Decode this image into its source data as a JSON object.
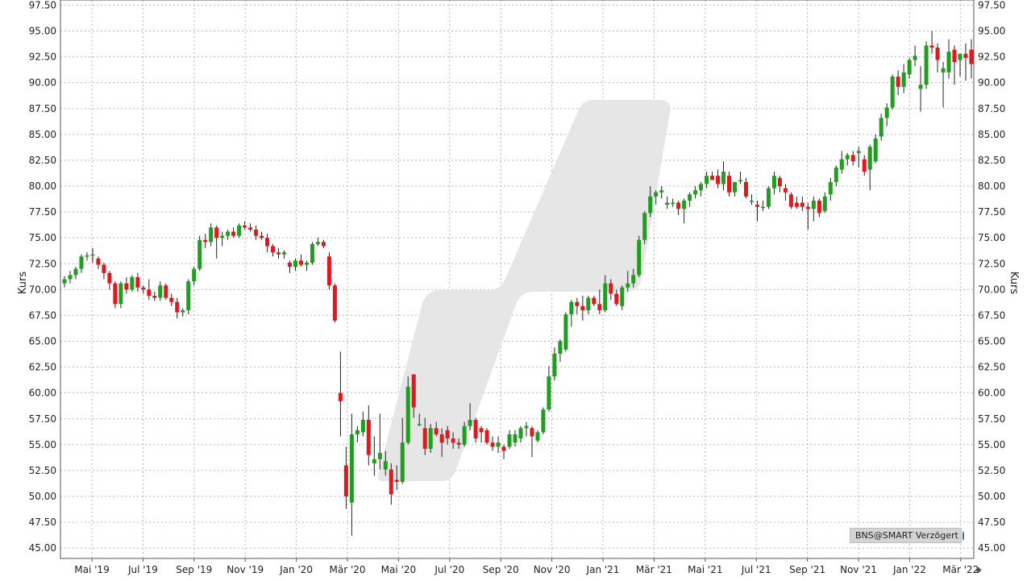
{
  "chart_data": {
    "type": "candlestick",
    "ylabel": "Kurs",
    "ylim": [
      44.0,
      98.0
    ],
    "y_ticks": [
      "45.00",
      "47.50",
      "50.00",
      "52.50",
      "55.00",
      "57.50",
      "60.00",
      "62.50",
      "65.00",
      "67.50",
      "70.00",
      "72.50",
      "75.00",
      "77.50",
      "80.00",
      "82.50",
      "85.00",
      "87.50",
      "90.00",
      "92.50",
      "95.00",
      "97.50"
    ],
    "x_ticks": [
      "Mai '19",
      "Jul '19",
      "Sep '19",
      "Nov '19",
      "Jan '20",
      "Mär '20",
      "Mai '20",
      "Jul '20",
      "Sep '20",
      "Nov '20",
      "Jan '21",
      "Mär '21",
      "Mai '21",
      "Jul '21",
      "Sep '21",
      "Nov '21",
      "Jan '22",
      "Mär '22"
    ],
    "grid": true,
    "colors": {
      "up": "#1f9e1f",
      "down": "#e0191e",
      "grid": "#b5b5b5",
      "watermark": "#e6e6e6"
    },
    "candles": [
      [
        70.6,
        71.3,
        70.2,
        71.0
      ],
      [
        71.0,
        71.8,
        70.6,
        71.4
      ],
      [
        71.4,
        72.2,
        71.0,
        72.0
      ],
      [
        72.0,
        73.4,
        71.6,
        73.2
      ],
      [
        73.2,
        73.6,
        72.8,
        73.3
      ],
      [
        73.3,
        74.0,
        72.6,
        73.4
      ],
      [
        73.0,
        73.2,
        72.0,
        72.4
      ],
      [
        72.4,
        72.6,
        71.0,
        71.6
      ],
      [
        71.6,
        71.8,
        70.0,
        70.6
      ],
      [
        70.6,
        70.8,
        68.2,
        68.6
      ],
      [
        68.6,
        70.8,
        68.2,
        70.6
      ],
      [
        70.6,
        71.2,
        69.6,
        70.0
      ],
      [
        70.0,
        71.4,
        69.8,
        71.2
      ],
      [
        71.2,
        71.6,
        69.8,
        70.2
      ],
      [
        70.2,
        70.4,
        69.6,
        70.0
      ],
      [
        70.0,
        71.0,
        69.0,
        69.4
      ],
      [
        69.4,
        69.8,
        68.9,
        69.2
      ],
      [
        69.2,
        70.8,
        68.9,
        70.4
      ],
      [
        70.4,
        70.6,
        69.0,
        69.2
      ],
      [
        69.2,
        69.6,
        68.4,
        68.8
      ],
      [
        68.8,
        69.2,
        67.2,
        67.8
      ],
      [
        67.8,
        68.2,
        67.4,
        68.0
      ],
      [
        68.0,
        71.0,
        67.6,
        70.8
      ],
      [
        70.8,
        72.2,
        70.4,
        72.0
      ],
      [
        72.0,
        75.2,
        71.8,
        74.8
      ],
      [
        74.8,
        75.4,
        74.0,
        74.6
      ],
      [
        74.6,
        76.4,
        74.2,
        76.0
      ],
      [
        76.0,
        76.2,
        73.0,
        75.0
      ],
      [
        75.0,
        75.6,
        74.2,
        75.2
      ],
      [
        75.2,
        75.8,
        74.8,
        75.6
      ],
      [
        75.6,
        76.0,
        75.0,
        75.2
      ],
      [
        75.2,
        76.4,
        75.0,
        76.2
      ],
      [
        76.2,
        76.6,
        75.8,
        76.0
      ],
      [
        76.0,
        76.4,
        75.6,
        75.8
      ],
      [
        75.8,
        76.2,
        74.8,
        75.2
      ],
      [
        75.2,
        75.6,
        74.8,
        75.0
      ],
      [
        75.0,
        75.4,
        73.6,
        74.2
      ],
      [
        74.2,
        74.4,
        73.2,
        73.6
      ],
      [
        73.6,
        74.0,
        73.0,
        73.4
      ],
      [
        73.4,
        73.8,
        73.0,
        73.6
      ],
      [
        72.6,
        72.8,
        71.6,
        72.2
      ],
      [
        72.2,
        73.0,
        71.8,
        72.8
      ],
      [
        72.8,
        73.4,
        72.2,
        72.4
      ],
      [
        72.4,
        72.8,
        71.8,
        72.6
      ],
      [
        72.6,
        74.6,
        72.4,
        74.4
      ],
      [
        74.4,
        75.0,
        74.2,
        74.6
      ],
      [
        74.6,
        74.8,
        74.0,
        74.2
      ],
      [
        73.2,
        73.6,
        70.0,
        70.4
      ],
      [
        70.4,
        70.6,
        66.8,
        67.0
      ],
      [
        60.0,
        64.0,
        55.8,
        59.2
      ],
      [
        53.0,
        54.8,
        48.8,
        50.0
      ],
      [
        49.4,
        58.0,
        46.2,
        56.0
      ],
      [
        56.0,
        56.8,
        55.2,
        56.4
      ],
      [
        56.2,
        58.2,
        55.8,
        57.4
      ],
      [
        57.4,
        58.8,
        53.0,
        54.0
      ],
      [
        53.2,
        55.8,
        52.0,
        53.6
      ],
      [
        53.6,
        58.0,
        52.6,
        54.2
      ],
      [
        52.6,
        54.4,
        52.0,
        53.4
      ],
      [
        52.6,
        53.2,
        49.2,
        50.2
      ],
      [
        51.6,
        53.0,
        50.6,
        51.4
      ],
      [
        51.4,
        57.6,
        51.2,
        55.2
      ],
      [
        55.2,
        61.6,
        55.0,
        60.6
      ],
      [
        61.8,
        61.8,
        57.6,
        58.6
      ],
      [
        57.0,
        58.0,
        56.8,
        57.0
      ],
      [
        56.6,
        57.6,
        54.0,
        54.6
      ],
      [
        54.6,
        57.0,
        54.2,
        56.6
      ],
      [
        56.6,
        57.2,
        55.8,
        56.0
      ],
      [
        56.0,
        56.6,
        53.8,
        55.2
      ],
      [
        56.4,
        56.8,
        55.0,
        55.6
      ],
      [
        55.6,
        56.2,
        54.6,
        55.2
      ],
      [
        55.2,
        55.6,
        54.6,
        55.0
      ],
      [
        55.0,
        57.2,
        54.8,
        56.8
      ],
      [
        56.8,
        59.0,
        56.4,
        57.4
      ],
      [
        57.4,
        57.6,
        55.2,
        55.6
      ],
      [
        56.6,
        56.8,
        55.2,
        56.2
      ],
      [
        56.4,
        56.6,
        55.0,
        55.2
      ],
      [
        55.2,
        55.8,
        54.4,
        54.8
      ],
      [
        54.8,
        55.8,
        54.2,
        55.2
      ],
      [
        54.8,
        55.0,
        53.6,
        54.4
      ],
      [
        54.8,
        56.4,
        54.6,
        56.0
      ],
      [
        55.2,
        56.4,
        54.8,
        56.0
      ],
      [
        55.6,
        56.8,
        55.2,
        56.6
      ],
      [
        56.6,
        57.2,
        55.8,
        56.8
      ],
      [
        56.6,
        56.8,
        53.8,
        55.8
      ],
      [
        55.4,
        56.4,
        55.2,
        56.2
      ],
      [
        56.2,
        58.6,
        56.0,
        58.4
      ],
      [
        58.4,
        62.6,
        58.2,
        61.6
      ],
      [
        61.6,
        64.4,
        61.2,
        63.8
      ],
      [
        63.8,
        65.2,
        63.0,
        65.0
      ],
      [
        64.2,
        67.8,
        64.0,
        67.6
      ],
      [
        67.6,
        69.0,
        66.4,
        68.8
      ],
      [
        68.8,
        69.2,
        67.6,
        68.4
      ],
      [
        68.4,
        69.4,
        67.0,
        68.0
      ],
      [
        68.0,
        69.4,
        67.6,
        69.2
      ],
      [
        69.2,
        69.4,
        68.4,
        68.6
      ],
      [
        68.6,
        70.0,
        67.6,
        68.0
      ],
      [
        68.0,
        71.4,
        67.8,
        70.6
      ],
      [
        70.6,
        71.0,
        69.0,
        69.6
      ],
      [
        69.6,
        70.0,
        68.4,
        68.6
      ],
      [
        68.4,
        70.4,
        68.0,
        70.2
      ],
      [
        70.2,
        71.8,
        69.8,
        70.6
      ],
      [
        70.6,
        72.0,
        70.2,
        71.4
      ],
      [
        71.4,
        75.2,
        71.2,
        74.8
      ],
      [
        74.8,
        77.6,
        74.4,
        77.4
      ],
      [
        77.4,
        80.0,
        77.0,
        79.0
      ],
      [
        79.0,
        79.6,
        78.2,
        79.4
      ],
      [
        79.4,
        80.0,
        78.8,
        79.6
      ],
      [
        78.2,
        79.0,
        77.8,
        78.4
      ],
      [
        78.4,
        78.8,
        78.0,
        78.4
      ],
      [
        78.4,
        78.6,
        77.2,
        77.8
      ],
      [
        77.8,
        78.8,
        76.4,
        78.6
      ],
      [
        78.6,
        79.4,
        78.0,
        79.2
      ],
      [
        79.2,
        80.0,
        78.8,
        79.6
      ],
      [
        79.6,
        80.4,
        79.0,
        80.2
      ],
      [
        80.2,
        81.4,
        79.8,
        81.0
      ],
      [
        81.0,
        81.4,
        80.6,
        80.6
      ],
      [
        81.0,
        81.6,
        79.8,
        80.2
      ],
      [
        80.2,
        82.4,
        79.6,
        81.4
      ],
      [
        81.0,
        81.4,
        79.0,
        79.4
      ],
      [
        79.4,
        80.4,
        79.0,
        80.4
      ],
      [
        80.6,
        81.4,
        80.2,
        80.6
      ],
      [
        80.4,
        80.8,
        78.8,
        79.0
      ],
      [
        78.6,
        79.2,
        78.2,
        78.6
      ],
      [
        78.2,
        78.6,
        76.6,
        78.0
      ],
      [
        78.0,
        78.6,
        77.6,
        78.0
      ],
      [
        78.0,
        80.0,
        77.8,
        79.8
      ],
      [
        79.8,
        81.4,
        79.2,
        81.0
      ],
      [
        80.8,
        81.0,
        79.4,
        80.0
      ],
      [
        79.8,
        80.2,
        78.6,
        79.4
      ],
      [
        79.2,
        79.4,
        77.8,
        78.0
      ],
      [
        78.4,
        79.0,
        77.8,
        78.0
      ],
      [
        78.4,
        79.0,
        77.6,
        78.0
      ],
      [
        78.0,
        78.4,
        75.8,
        77.8
      ],
      [
        77.8,
        79.0,
        76.6,
        78.6
      ],
      [
        78.6,
        78.8,
        77.0,
        77.4
      ],
      [
        77.6,
        79.4,
        77.4,
        79.0
      ],
      [
        79.2,
        80.8,
        78.6,
        80.4
      ],
      [
        80.4,
        82.0,
        80.0,
        81.8
      ],
      [
        81.6,
        83.4,
        81.2,
        82.6
      ],
      [
        82.6,
        83.2,
        82.0,
        83.0
      ],
      [
        83.0,
        83.4,
        82.0,
        82.4
      ],
      [
        83.2,
        83.8,
        81.8,
        83.4
      ],
      [
        82.6,
        83.0,
        81.0,
        81.4
      ],
      [
        81.6,
        84.0,
        79.6,
        83.8
      ],
      [
        82.4,
        85.0,
        82.2,
        84.6
      ],
      [
        84.8,
        87.0,
        84.4,
        86.6
      ],
      [
        86.6,
        88.0,
        85.8,
        87.6
      ],
      [
        87.6,
        90.8,
        87.4,
        90.6
      ],
      [
        90.6,
        91.2,
        88.8,
        89.6
      ],
      [
        89.6,
        91.8,
        89.0,
        91.0
      ],
      [
        90.8,
        92.4,
        90.4,
        92.2
      ],
      [
        92.2,
        93.6,
        91.6,
        92.6
      ],
      [
        89.4,
        91.6,
        87.2,
        89.8
      ],
      [
        89.8,
        94.0,
        89.4,
        93.6
      ],
      [
        93.6,
        95.0,
        92.8,
        93.4
      ],
      [
        93.4,
        93.8,
        91.0,
        92.2
      ],
      [
        91.0,
        92.0,
        87.6,
        91.4
      ],
      [
        91.0,
        94.2,
        90.4,
        93.0
      ],
      [
        93.2,
        93.6,
        89.8,
        92.0
      ],
      [
        92.2,
        92.8,
        90.6,
        92.8
      ],
      [
        92.8,
        93.8,
        90.2,
        92.4
      ],
      [
        93.2,
        94.2,
        90.4,
        91.8
      ]
    ]
  },
  "source_label": "BNS@SMART Verzögert",
  "globe_icon": "globe-icon",
  "scroll_glyph": "◆"
}
